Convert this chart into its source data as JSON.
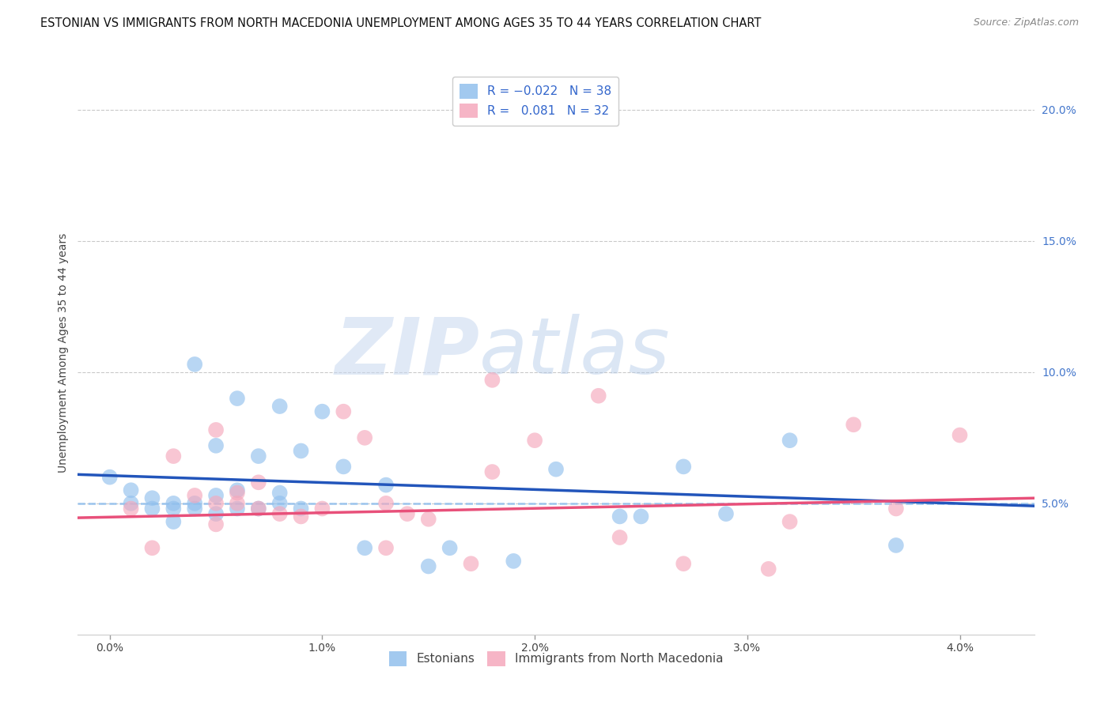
{
  "title": "ESTONIAN VS IMMIGRANTS FROM NORTH MACEDONIA UNEMPLOYMENT AMONG AGES 35 TO 44 YEARS CORRELATION CHART",
  "source": "Source: ZipAtlas.com",
  "ylabel": "Unemployment Among Ages 35 to 44 years",
  "x_ticks": [
    0.0,
    0.01,
    0.02,
    0.03,
    0.04
  ],
  "x_tick_labels": [
    "0.0%",
    "1.0%",
    "2.0%",
    "3.0%",
    "4.0%"
  ],
  "y_ticks_right": [
    0.05,
    0.1,
    0.15,
    0.2
  ],
  "y_tick_labels_right": [
    "5.0%",
    "10.0%",
    "15.0%",
    "20.0%"
  ],
  "ymin": 0.0,
  "ymax": 0.215,
  "xmin": -0.0015,
  "xmax": 0.0435,
  "blue_R": -0.022,
  "blue_N": 38,
  "pink_R": 0.081,
  "pink_N": 32,
  "blue_color": "#92C0ED",
  "pink_color": "#F5A8BC",
  "blue_line_color": "#2255BB",
  "pink_line_color": "#E8507A",
  "dashed_line_color": "#92C0ED",
  "dashed_line_y": 0.05,
  "watermark_zip": "ZIP",
  "watermark_atlas": "atlas",
  "estonians_x": [
    0.0,
    0.001,
    0.001,
    0.002,
    0.002,
    0.003,
    0.003,
    0.003,
    0.004,
    0.004,
    0.004,
    0.005,
    0.005,
    0.005,
    0.006,
    0.006,
    0.006,
    0.007,
    0.007,
    0.008,
    0.008,
    0.008,
    0.009,
    0.009,
    0.01,
    0.011,
    0.012,
    0.013,
    0.015,
    0.016,
    0.019,
    0.021,
    0.024,
    0.025,
    0.027,
    0.029,
    0.032,
    0.037
  ],
  "estonians_y": [
    0.06,
    0.055,
    0.05,
    0.052,
    0.048,
    0.05,
    0.048,
    0.043,
    0.05,
    0.048,
    0.103,
    0.072,
    0.053,
    0.046,
    0.09,
    0.055,
    0.048,
    0.048,
    0.068,
    0.087,
    0.054,
    0.05,
    0.048,
    0.07,
    0.085,
    0.064,
    0.033,
    0.057,
    0.026,
    0.033,
    0.028,
    0.063,
    0.045,
    0.045,
    0.064,
    0.046,
    0.074,
    0.034
  ],
  "macedonia_x": [
    0.001,
    0.002,
    0.003,
    0.004,
    0.005,
    0.005,
    0.005,
    0.006,
    0.006,
    0.007,
    0.007,
    0.008,
    0.009,
    0.01,
    0.011,
    0.012,
    0.013,
    0.013,
    0.014,
    0.015,
    0.017,
    0.018,
    0.018,
    0.02,
    0.023,
    0.024,
    0.027,
    0.031,
    0.032,
    0.035,
    0.037,
    0.04
  ],
  "macedonia_y": [
    0.048,
    0.033,
    0.068,
    0.053,
    0.042,
    0.05,
    0.078,
    0.054,
    0.05,
    0.058,
    0.048,
    0.046,
    0.045,
    0.048,
    0.085,
    0.075,
    0.05,
    0.033,
    0.046,
    0.044,
    0.027,
    0.097,
    0.062,
    0.074,
    0.091,
    0.037,
    0.027,
    0.025,
    0.043,
    0.08,
    0.048,
    0.076
  ],
  "blue_trend_x": [
    -0.0015,
    0.0435
  ],
  "blue_trend_y": [
    0.061,
    0.049
  ],
  "pink_trend_x": [
    -0.0015,
    0.0435
  ],
  "pink_trend_y": [
    0.0445,
    0.052
  ],
  "marker_size": 200,
  "title_fontsize": 10.5,
  "axis_label_fontsize": 10,
  "tick_fontsize": 10,
  "legend_fontsize": 11,
  "source_fontsize": 9
}
